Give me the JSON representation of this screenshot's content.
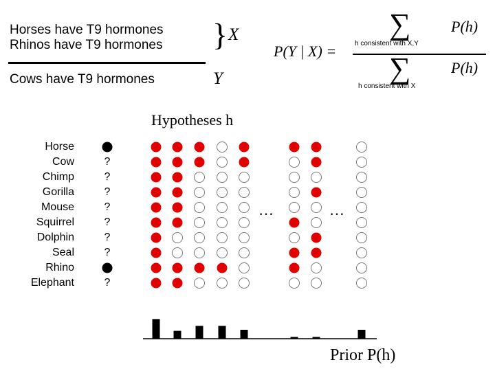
{
  "premises": {
    "line1": "Horses have T9 hormones",
    "line2": "Rhinos have T9 hormones",
    "conclusion": "Cows have T9 hormones",
    "x_label": "X",
    "y_label": "Y"
  },
  "formula": {
    "lhs": "P(Y | X) =",
    "num_sigma": "∑",
    "num_sub": "h consistent with X,Y",
    "num_term": "P(h)",
    "den_sigma": "∑",
    "den_sub": "h consistent with X",
    "den_term": "P(h)"
  },
  "hypotheses_label": "Hypotheses h",
  "animals": [
    "Horse",
    "Cow",
    "Chimp",
    "Gorilla",
    "Mouse",
    "Squirrel",
    "Dolphin",
    "Seal",
    "Rhino",
    "Elephant"
  ],
  "observations": [
    "filled",
    "?",
    "?",
    "?",
    "?",
    "?",
    "?",
    "?",
    "filled",
    "?"
  ],
  "unknown_mark": "?",
  "ellipsis": "…",
  "hypotheses": [
    [
      1,
      1,
      1,
      1,
      1,
      1,
      1,
      1,
      1,
      1
    ],
    [
      1,
      1,
      1,
      1,
      1,
      1,
      0,
      0,
      1,
      1
    ],
    [
      1,
      1,
      0,
      0,
      0,
      0,
      0,
      0,
      1,
      0
    ],
    [
      0,
      0,
      0,
      0,
      0,
      0,
      0,
      0,
      1,
      0
    ],
    [
      1,
      1,
      0,
      0,
      0,
      0,
      0,
      0,
      0,
      0
    ],
    [
      1,
      0,
      0,
      0,
      0,
      1,
      0,
      1,
      1,
      0
    ],
    [
      1,
      1,
      0,
      1,
      0,
      0,
      1,
      1,
      0,
      0
    ],
    [
      0,
      0,
      0,
      0,
      0,
      0,
      0,
      0,
      0,
      0
    ]
  ],
  "prior": [
    0.55,
    0.22,
    0.36,
    0.36,
    0.25,
    0.05,
    0.05,
    0.25
  ],
  "prior_label": "Prior  P(h)",
  "colors": {
    "filled_dot": "#e00000",
    "observed_dot": "#000000",
    "empty_dot_stroke": "#777777",
    "bar": "#000000"
  }
}
